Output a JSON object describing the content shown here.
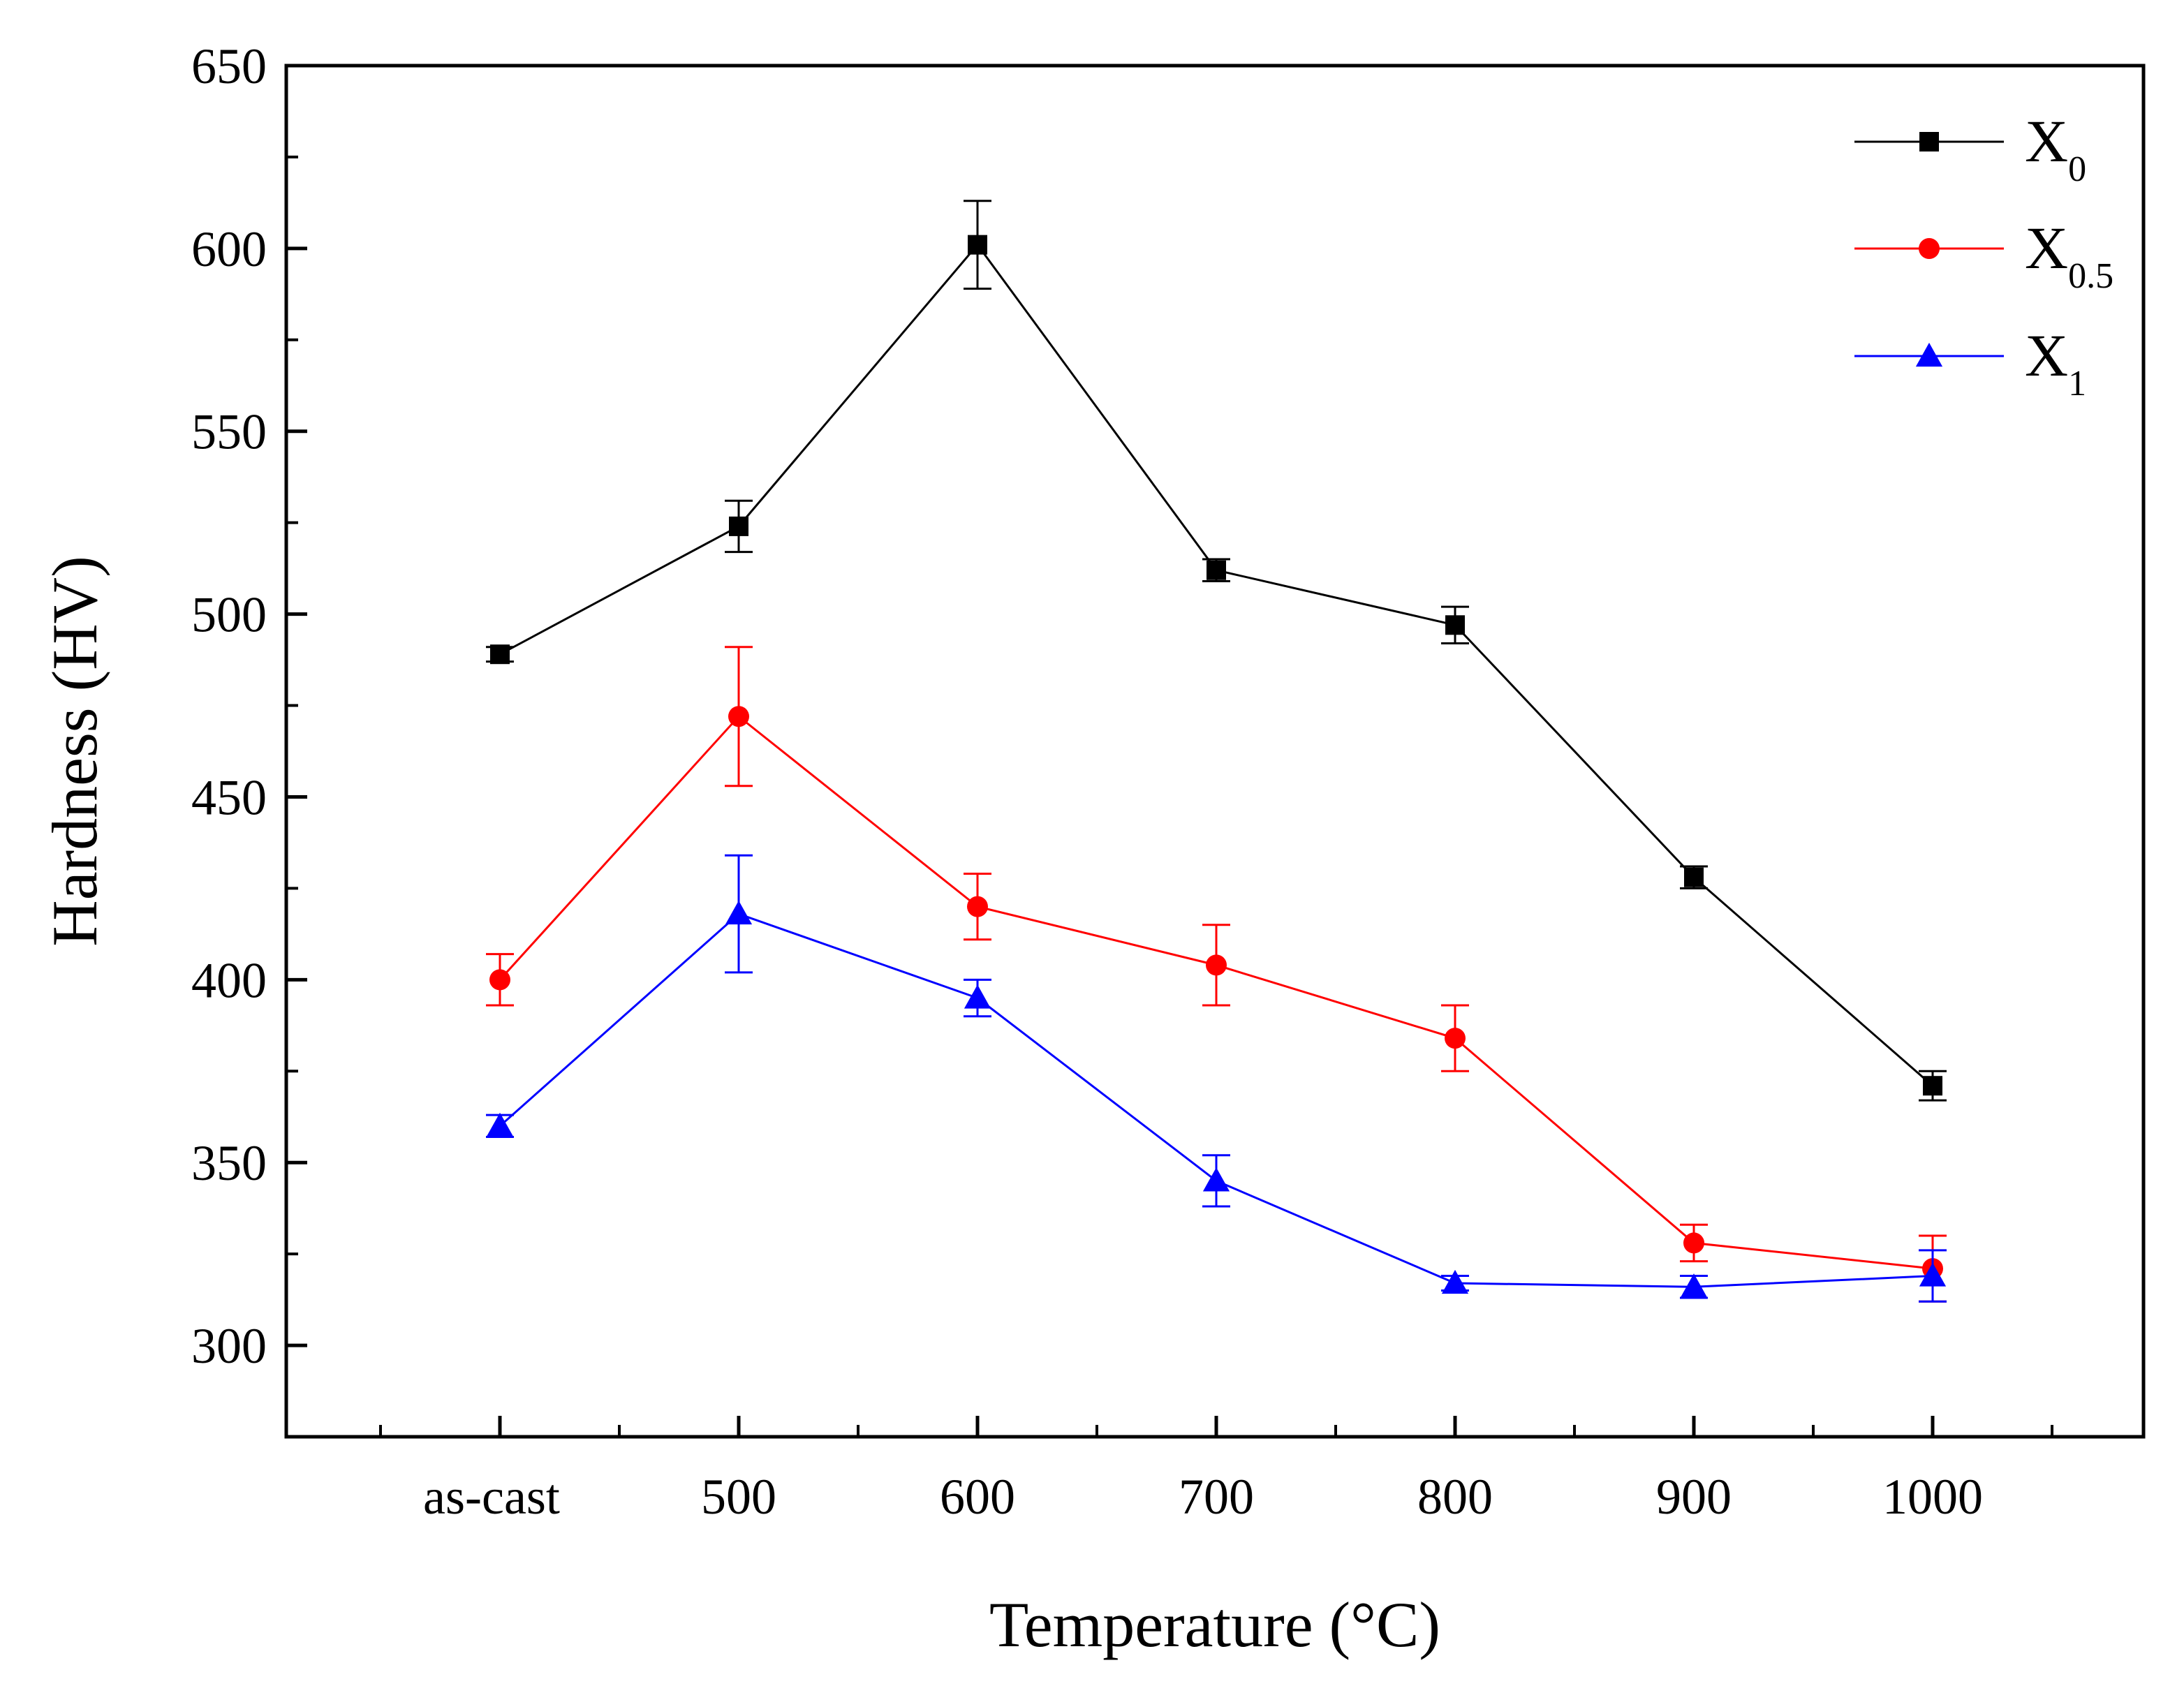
{
  "chart_data": {
    "type": "line",
    "title": "",
    "xlabel": "Temperature (°C)",
    "ylabel": "Hardness (HV)",
    "categories": [
      "as-cast",
      "500",
      "600",
      "700",
      "800",
      "900",
      "1000"
    ],
    "ylim": [
      275,
      650
    ],
    "yticks": [
      300,
      350,
      400,
      450,
      500,
      550,
      600,
      650
    ],
    "grid": false,
    "legend_position": "top-right",
    "series": [
      {
        "name": "X",
        "subscript": "0",
        "color": "#000000",
        "marker": "square",
        "values": [
          489,
          524,
          601,
          512,
          497,
          428,
          371
        ],
        "errors": [
          2,
          7,
          12,
          3,
          5,
          3,
          4
        ]
      },
      {
        "name": "X",
        "subscript": "0.5",
        "color": "#ff0000",
        "marker": "circle",
        "values": [
          400,
          472,
          420,
          404,
          384,
          328,
          321
        ],
        "errors": [
          7,
          19,
          9,
          11,
          9,
          5,
          9
        ]
      },
      {
        "name": "X",
        "subscript": "1",
        "color": "#0000ff",
        "marker": "triangle",
        "values": [
          360,
          418,
          395,
          345,
          317,
          316,
          319
        ],
        "errors": [
          3,
          16,
          5,
          7,
          2,
          3,
          7
        ]
      }
    ]
  }
}
